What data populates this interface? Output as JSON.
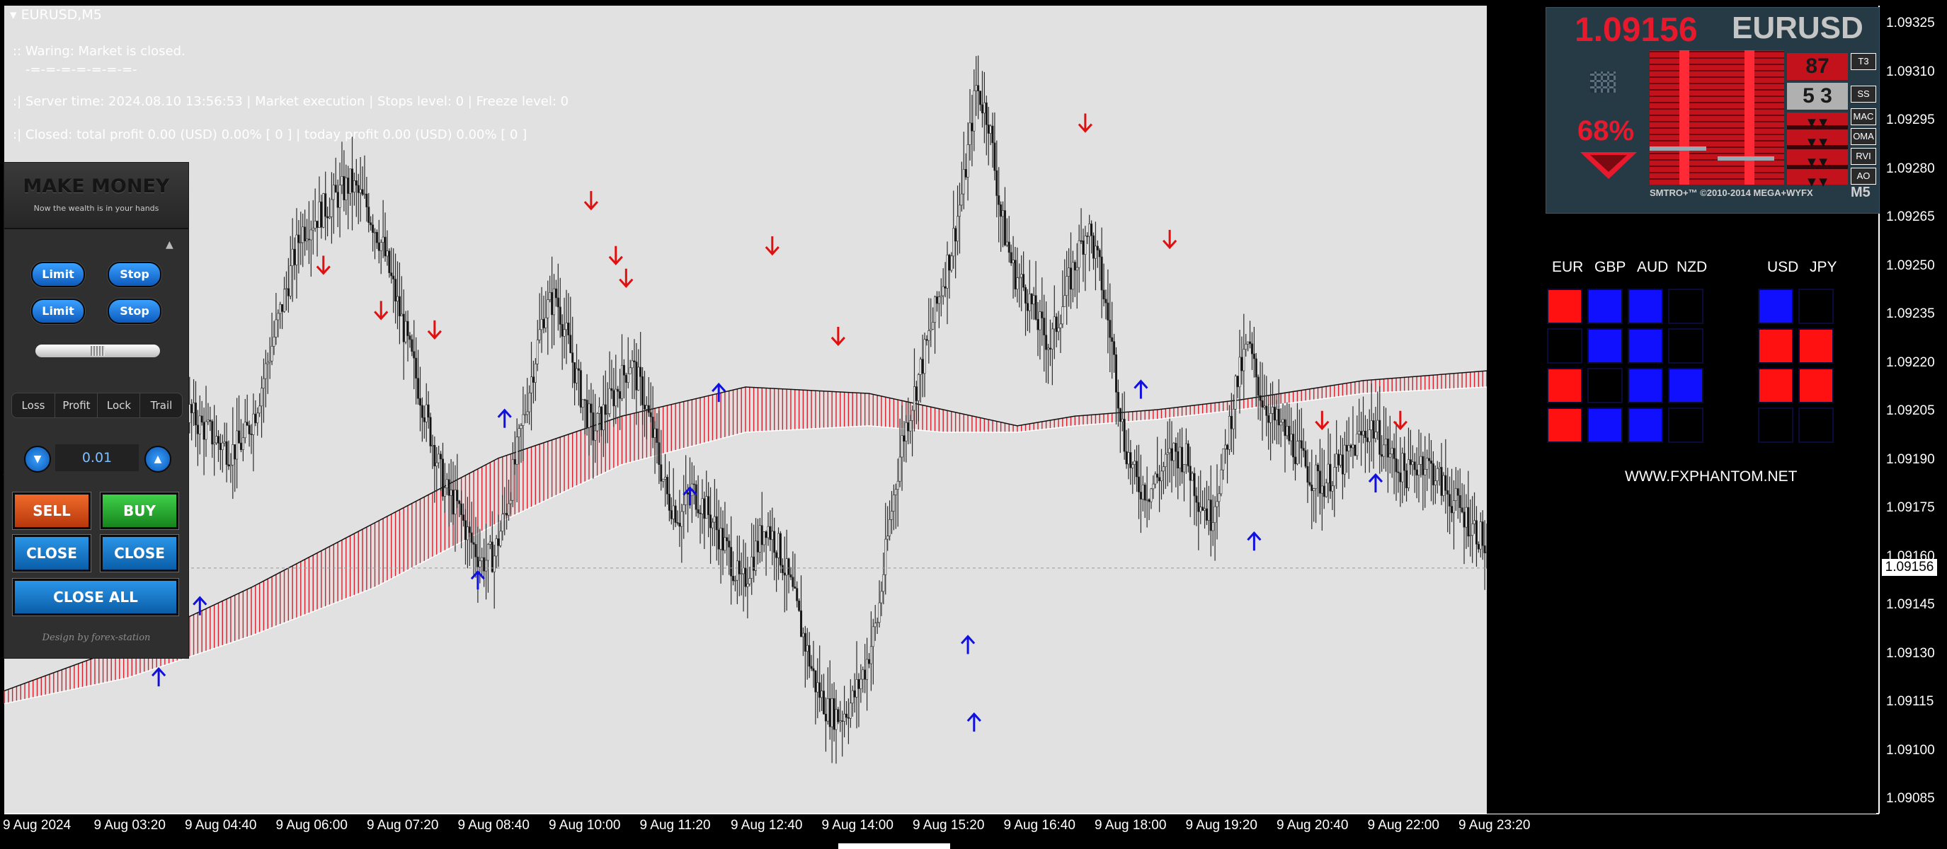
{
  "chart": {
    "symbol_title": "EURUSD,M5",
    "warning": ":: Waring: Market is closed.",
    "separator": "-=-=-=-=-=-=-=-",
    "server_line": ":| Server time: 2024.08.10 13:56:53  | Market execution  | Stops level: 0  | Freeze level: 0",
    "profit_line": ":| Closed: total profit 0.00 (USD)  0.00% [ 0 ]  | today profit 0.00 (USD)  0.00% [ 0 ]",
    "current_price_label": "1.09156"
  },
  "trade_panel": {
    "title": "MAKE MONEY",
    "subtitle": "Now the wealth is in your hands",
    "limit_label": "Limit",
    "stop_label": "Stop",
    "tabs": [
      "Loss",
      "Profit",
      "Lock",
      "Trail"
    ],
    "lot_value": "0.01",
    "minus_glyph": "▼",
    "plus_glyph": "▲",
    "sell_label": "SELL",
    "buy_label": "BUY",
    "close_label": "CLOSE",
    "close_all_label": "CLOSE ALL",
    "design_credit": "Design by forex-station",
    "colors": {
      "sell": "#d64a16",
      "buy": "#21a92a",
      "close": "#0e76c8"
    }
  },
  "gauge": {
    "price": "1.09156",
    "symbol": "EURUSD",
    "percent": "68%",
    "box_top": "87",
    "box_mid": "5 3",
    "indicators": [
      "T3",
      "SS",
      "MAC",
      "OMA",
      "RVI",
      "AO"
    ],
    "copyright": "SMTRO+™ ©2010-2014 MEGA+WYFX",
    "timeframe": "M5"
  },
  "currency_strength": {
    "headers_left": [
      "EUR",
      "GBP",
      "AUD",
      "NZD"
    ],
    "headers_right": [
      "USD",
      "JPY"
    ],
    "grid_left": [
      [
        "red",
        "blue",
        "blue",
        "black"
      ],
      [
        "black",
        "blue",
        "blue",
        "black"
      ],
      [
        "red",
        "black",
        "blue",
        "blue"
      ],
      [
        "red",
        "blue",
        "blue",
        "black"
      ]
    ],
    "grid_right": [
      [
        "blue",
        "black"
      ],
      [
        "red",
        "red"
      ],
      [
        "red",
        "red"
      ],
      [
        "black",
        "black"
      ]
    ],
    "website": "WWW.FXPHANTOM.NET"
  },
  "price_axis": [
    "1.09325",
    "1.09310",
    "1.09295",
    "1.09280",
    "1.09265",
    "1.09250",
    "1.09235",
    "1.09220",
    "1.09205",
    "1.09190",
    "1.09175",
    "1.09160",
    "1.09145",
    "1.09130",
    "1.09115",
    "1.09100",
    "1.09085"
  ],
  "time_axis": [
    "9 Aug 2024",
    "9 Aug 03:20",
    "9 Aug 04:40",
    "9 Aug 06:00",
    "9 Aug 07:20",
    "9 Aug 08:40",
    "9 Aug 10:00",
    "9 Aug 11:20",
    "9 Aug 12:40",
    "9 Aug 14:00",
    "9 Aug 15:20",
    "9 Aug 16:40",
    "9 Aug 18:00",
    "9 Aug 19:20",
    "9 Aug 20:40",
    "9 Aug 22:00",
    "9 Aug 23:20"
  ],
  "chart_data": {
    "type": "candlestick",
    "y_range": [
      1.0908,
      1.0933
    ],
    "current_price": 1.09156,
    "close_series": [
      [
        0,
        1.09185
      ],
      [
        15,
        1.09175
      ],
      [
        25,
        1.0918
      ],
      [
        33,
        1.092
      ],
      [
        40,
        1.09215
      ],
      [
        48,
        1.09225
      ],
      [
        56,
        1.09235
      ],
      [
        64,
        1.0923
      ],
      [
        72,
        1.0922
      ],
      [
        80,
        1.0921
      ],
      [
        88,
        1.09205
      ],
      [
        96,
        1.092
      ],
      [
        104,
        1.09195
      ],
      [
        110,
        1.09192
      ],
      [
        116,
        1.09195
      ],
      [
        122,
        1.09205
      ],
      [
        128,
        1.0922
      ],
      [
        136,
        1.0924
      ],
      [
        144,
        1.0926
      ],
      [
        152,
        1.09265
      ],
      [
        160,
        1.0927
      ],
      [
        168,
        1.09275
      ],
      [
        176,
        1.09268
      ],
      [
        184,
        1.09255
      ],
      [
        190,
        1.0924
      ],
      [
        196,
        1.09225
      ],
      [
        202,
        1.0921
      ],
      [
        208,
        1.09195
      ],
      [
        214,
        1.0918
      ],
      [
        220,
        1.09175
      ],
      [
        226,
        1.09165
      ],
      [
        232,
        1.09158
      ],
      [
        238,
        1.0916
      ],
      [
        244,
        1.09175
      ],
      [
        250,
        1.09195
      ],
      [
        256,
        1.09215
      ],
      [
        262,
        1.09235
      ],
      [
        268,
        1.0924
      ],
      [
        274,
        1.09225
      ],
      [
        280,
        1.0921
      ],
      [
        286,
        1.09198
      ],
      [
        292,
        1.09205
      ],
      [
        298,
        1.09212
      ],
      [
        304,
        1.0922
      ],
      [
        310,
        1.0921
      ],
      [
        316,
        1.09195
      ],
      [
        322,
        1.09178
      ],
      [
        328,
        1.09172
      ],
      [
        334,
        1.0918
      ],
      [
        340,
        1.09175
      ],
      [
        346,
        1.09168
      ],
      [
        352,
        1.0916
      ],
      [
        358,
        1.0915
      ],
      [
        364,
        1.0916
      ],
      [
        370,
        1.0917
      ],
      [
        376,
        1.09162
      ],
      [
        382,
        1.0915
      ],
      [
        388,
        1.09135
      ],
      [
        394,
        1.0912
      ],
      [
        400,
        1.09112
      ],
      [
        406,
        1.0911
      ],
      [
        412,
        1.09115
      ],
      [
        418,
        1.09125
      ],
      [
        424,
        1.0914
      ],
      [
        430,
        1.0917
      ],
      [
        436,
        1.09195
      ],
      [
        442,
        1.0921
      ],
      [
        448,
        1.09225
      ],
      [
        454,
        1.0924
      ],
      [
        460,
        1.09255
      ],
      [
        466,
        1.09275
      ],
      [
        472,
        1.09305
      ],
      [
        478,
        1.09295
      ],
      [
        484,
        1.09265
      ],
      [
        490,
        1.09248
      ],
      [
        496,
        1.09242
      ],
      [
        502,
        1.09232
      ],
      [
        508,
        1.09225
      ],
      [
        514,
        1.09238
      ],
      [
        520,
        1.0925
      ],
      [
        526,
        1.09262
      ],
      [
        532,
        1.09248
      ],
      [
        538,
        1.09225
      ],
      [
        544,
        1.09195
      ],
      [
        550,
        1.09182
      ],
      [
        556,
        1.0918
      ],
      [
        562,
        1.09186
      ],
      [
        568,
        1.09192
      ],
      [
        574,
        1.0919
      ],
      [
        580,
        1.09178
      ],
      [
        586,
        1.09172
      ],
      [
        592,
        1.09188
      ],
      [
        598,
        1.09212
      ],
      [
        604,
        1.09225
      ],
      [
        610,
        1.0921
      ],
      [
        616,
        1.09202
      ],
      [
        622,
        1.09198
      ],
      [
        628,
        1.09192
      ],
      [
        634,
        1.09185
      ],
      [
        640,
        1.09182
      ],
      [
        646,
        1.09186
      ],
      [
        652,
        1.0919
      ],
      [
        658,
        1.09196
      ],
      [
        664,
        1.092
      ],
      [
        670,
        1.09194
      ],
      [
        676,
        1.09188
      ],
      [
        682,
        1.09185
      ],
      [
        688,
        1.0919
      ],
      [
        694,
        1.09186
      ],
      [
        700,
        1.0918
      ],
      [
        706,
        1.09175
      ],
      [
        712,
        1.0917
      ],
      [
        718,
        1.09165
      ],
      [
        720,
        1.09157
      ]
    ],
    "ma_upper": [
      [
        0,
        1.09118
      ],
      [
        60,
        1.09132
      ],
      [
        120,
        1.0915
      ],
      [
        180,
        1.0917
      ],
      [
        240,
        1.0919
      ],
      [
        300,
        1.09203
      ],
      [
        360,
        1.09212
      ],
      [
        420,
        1.0921
      ],
      [
        456,
        1.09205
      ],
      [
        492,
        1.092
      ],
      [
        520,
        1.09203
      ],
      [
        560,
        1.09205
      ],
      [
        600,
        1.09208
      ],
      [
        660,
        1.09214
      ],
      [
        720,
        1.09217
      ]
    ],
    "ma_lower": [
      [
        0,
        1.09114
      ],
      [
        60,
        1.09122
      ],
      [
        120,
        1.09135
      ],
      [
        180,
        1.0915
      ],
      [
        240,
        1.0917
      ],
      [
        300,
        1.09188
      ],
      [
        360,
        1.09198
      ],
      [
        420,
        1.092
      ],
      [
        456,
        1.09198
      ],
      [
        492,
        1.09198
      ],
      [
        520,
        1.092
      ],
      [
        560,
        1.09202
      ],
      [
        600,
        1.09205
      ],
      [
        660,
        1.0921
      ],
      [
        720,
        1.09212
      ]
    ],
    "up_arrows": [
      [
        75,
        1.09122
      ],
      [
        95,
        1.09144
      ],
      [
        230,
        1.09152
      ],
      [
        243,
        1.09202
      ],
      [
        333,
        1.09178
      ],
      [
        347,
        1.0921
      ],
      [
        468,
        1.09132
      ],
      [
        471,
        1.09108
      ],
      [
        552,
        1.09211
      ],
      [
        607,
        1.09164
      ],
      [
        666,
        1.09182
      ]
    ],
    "down_arrows": [
      [
        155,
        1.0925
      ],
      [
        183,
        1.09236
      ],
      [
        209,
        1.0923
      ],
      [
        285,
        1.0927
      ],
      [
        297,
        1.09253
      ],
      [
        302,
        1.09246
      ],
      [
        373,
        1.09256
      ],
      [
        405,
        1.09228
      ],
      [
        525,
        1.09294
      ],
      [
        566,
        1.09258
      ],
      [
        640,
        1.09202
      ],
      [
        678,
        1.09202
      ]
    ],
    "time_labels": [
      "9 Aug 2024",
      "9 Aug 03:20",
      "9 Aug 04:40",
      "9 Aug 06:00",
      "9 Aug 07:20",
      "9 Aug 08:40",
      "9 Aug 10:00",
      "9 Aug 11:20",
      "9 Aug 12:40",
      "9 Aug 14:00",
      "9 Aug 15:20",
      "9 Aug 16:40",
      "9 Aug 18:00",
      "9 Aug 19:20",
      "9 Aug 20:40",
      "9 Aug 22:00",
      "9 Aug 23:20"
    ]
  }
}
